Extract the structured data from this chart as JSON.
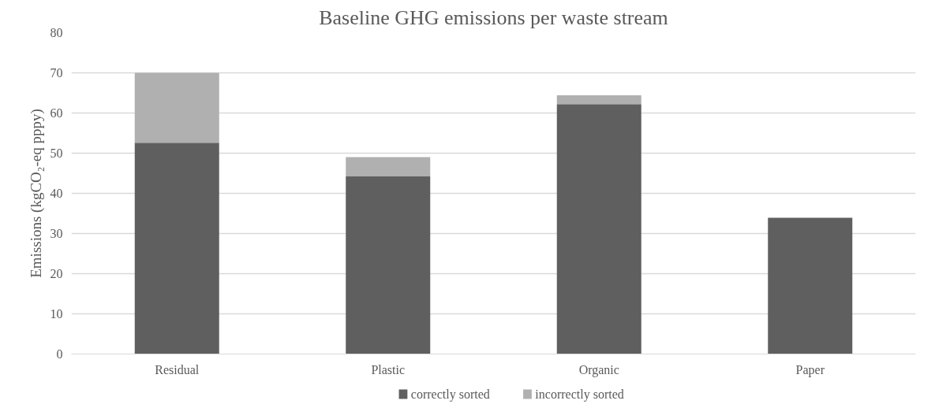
{
  "chart_data": {
    "type": "bar",
    "title": "Baseline GHG emissions per waste stream",
    "ylabel": "Emissions (kgCO₂-eq pppy)",
    "categories": [
      "Residual",
      "Plastic",
      "Organic",
      "Paper"
    ],
    "stacked": true,
    "series": [
      {
        "name": "correctly sorted",
        "color": "#5f5f5f",
        "values": [
          52.6,
          44.3,
          62.2,
          33.9
        ]
      },
      {
        "name": "incorrectly sorted",
        "color": "#b0b0b0",
        "values": [
          17.4,
          4.7,
          2.2,
          0
        ]
      }
    ],
    "ylim": [
      0,
      80
    ],
    "yticks": [
      0,
      10,
      20,
      30,
      40,
      50,
      60,
      70,
      80
    ],
    "grid": "y",
    "legend": "bottom"
  }
}
